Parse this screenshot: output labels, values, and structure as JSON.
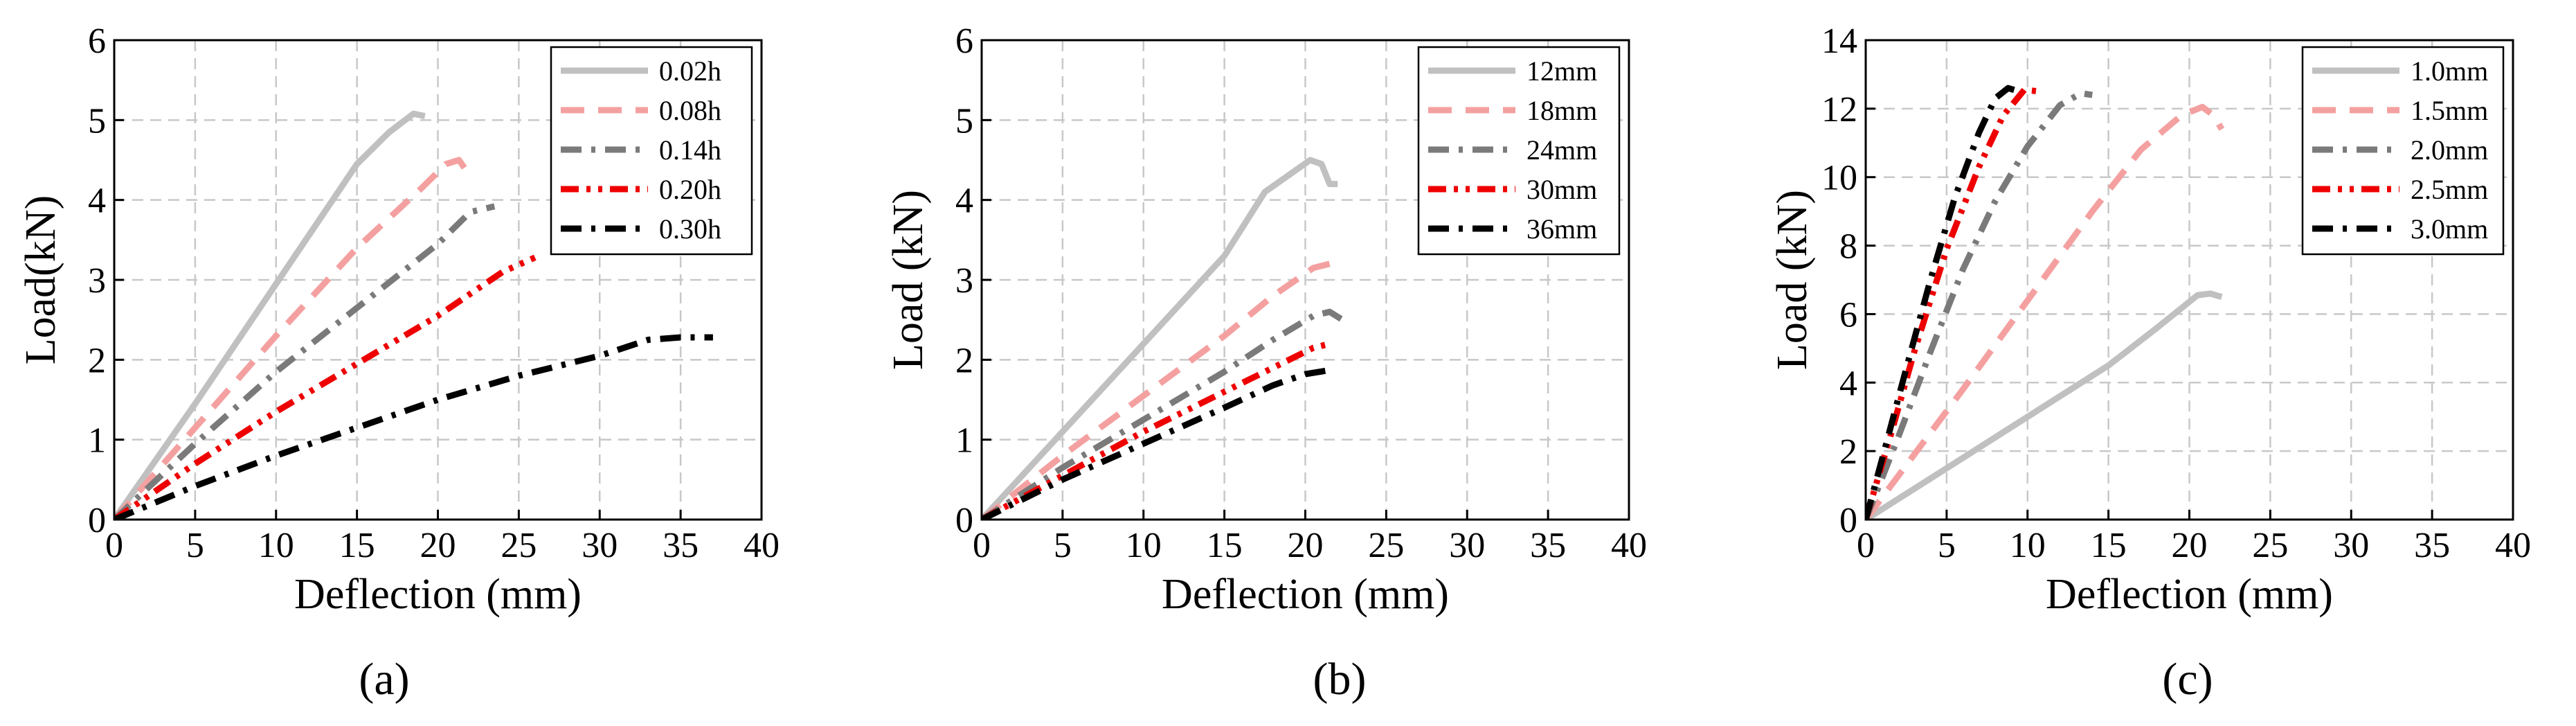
{
  "chart_data": [
    {
      "type": "line",
      "panel_label": "(a)",
      "xlabel": "Deflection (mm)",
      "ylabel": "Load(kN)",
      "xlim": [
        0,
        40
      ],
      "ylim": [
        0,
        6
      ],
      "xticks": [
        0,
        5,
        10,
        15,
        20,
        25,
        30,
        35,
        40
      ],
      "yticks": [
        0,
        1,
        2,
        3,
        4,
        5,
        6
      ],
      "grid": true,
      "legend_position": "top-right",
      "series": [
        {
          "name": "0.02h",
          "color": "#c0c0c0",
          "dash": "solid",
          "points": [
            [
              0,
              0
            ],
            [
              5,
              1.45
            ],
            [
              10,
              2.95
            ],
            [
              15,
              4.45
            ],
            [
              17,
              4.85
            ],
            [
              18.5,
              5.08
            ],
            [
              19.2,
              5.05
            ]
          ]
        },
        {
          "name": "0.08h",
          "color": "#f4a0a0",
          "dash": "dash",
          "points": [
            [
              0,
              0
            ],
            [
              5,
              1.15
            ],
            [
              10,
              2.3
            ],
            [
              15,
              3.4
            ],
            [
              19,
              4.15
            ],
            [
              20.5,
              4.45
            ],
            [
              21.3,
              4.5
            ],
            [
              22,
              4.3
            ]
          ]
        },
        {
          "name": "0.14h",
          "color": "#7a7a7a",
          "dash": "dashdot",
          "points": [
            [
              0,
              0
            ],
            [
              5,
              0.95
            ],
            [
              10,
              1.85
            ],
            [
              15,
              2.65
            ],
            [
              20,
              3.45
            ],
            [
              22,
              3.85
            ],
            [
              23.5,
              3.92
            ]
          ]
        },
        {
          "name": "0.20h",
          "color": "#ee0000",
          "dash": "dashdotdot",
          "points": [
            [
              0,
              0
            ],
            [
              5,
              0.7
            ],
            [
              10,
              1.35
            ],
            [
              15,
              1.95
            ],
            [
              20,
              2.55
            ],
            [
              24,
              3.1
            ],
            [
              26,
              3.28
            ]
          ]
        },
        {
          "name": "0.30h",
          "color": "#000000",
          "dash": "dashdot",
          "points": [
            [
              0,
              0
            ],
            [
              5,
              0.42
            ],
            [
              10,
              0.8
            ],
            [
              15,
              1.15
            ],
            [
              20,
              1.5
            ],
            [
              25,
              1.8
            ],
            [
              30,
              2.05
            ],
            [
              33,
              2.25
            ],
            [
              35,
              2.28
            ],
            [
              37,
              2.28
            ]
          ]
        }
      ]
    },
    {
      "type": "line",
      "panel_label": "(b)",
      "xlabel": "Deflection (mm)",
      "ylabel": "Load (kN)",
      "xlim": [
        0,
        40
      ],
      "ylim": [
        0,
        6
      ],
      "xticks": [
        0,
        5,
        10,
        15,
        20,
        25,
        30,
        35,
        40
      ],
      "yticks": [
        0,
        1,
        2,
        3,
        4,
        5,
        6
      ],
      "grid": true,
      "legend_position": "top-right",
      "series": [
        {
          "name": "12mm",
          "color": "#c0c0c0",
          "dash": "solid",
          "points": [
            [
              0,
              0
            ],
            [
              5,
              1.1
            ],
            [
              10,
              2.2
            ],
            [
              15,
              3.3
            ],
            [
              17.5,
              4.1
            ],
            [
              20.3,
              4.5
            ],
            [
              21,
              4.45
            ],
            [
              21.5,
              4.2
            ],
            [
              22,
              4.2
            ]
          ]
        },
        {
          "name": "18mm",
          "color": "#f4a0a0",
          "dash": "dash",
          "points": [
            [
              0,
              0
            ],
            [
              5,
              0.8
            ],
            [
              10,
              1.55
            ],
            [
              15,
              2.3
            ],
            [
              18,
              2.8
            ],
            [
              20.5,
              3.15
            ],
            [
              21.5,
              3.2
            ]
          ]
        },
        {
          "name": "24mm",
          "color": "#7a7a7a",
          "dash": "dashdot",
          "points": [
            [
              0,
              0
            ],
            [
              5,
              0.65
            ],
            [
              10,
              1.25
            ],
            [
              15,
              1.85
            ],
            [
              18,
              2.25
            ],
            [
              20.5,
              2.55
            ],
            [
              21.5,
              2.6
            ],
            [
              22.3,
              2.5
            ]
          ]
        },
        {
          "name": "30mm",
          "color": "#ee0000",
          "dash": "dashdotdot",
          "points": [
            [
              0,
              0
            ],
            [
              5,
              0.55
            ],
            [
              10,
              1.1
            ],
            [
              15,
              1.6
            ],
            [
              18,
              1.9
            ],
            [
              20.5,
              2.15
            ],
            [
              21.5,
              2.2
            ]
          ]
        },
        {
          "name": "36mm",
          "color": "#000000",
          "dash": "dashdot",
          "points": [
            [
              0,
              0
            ],
            [
              5,
              0.5
            ],
            [
              10,
              0.95
            ],
            [
              15,
              1.4
            ],
            [
              18,
              1.68
            ],
            [
              20,
              1.82
            ],
            [
              21.5,
              1.87
            ]
          ]
        }
      ]
    },
    {
      "type": "line",
      "panel_label": "(c)",
      "xlabel": "Deflection (mm)",
      "ylabel": "Load (kN)",
      "xlim": [
        0,
        40
      ],
      "ylim": [
        0,
        14
      ],
      "xticks": [
        0,
        5,
        10,
        15,
        20,
        25,
        30,
        35,
        40
      ],
      "yticks": [
        0,
        2,
        4,
        6,
        8,
        10,
        12,
        14
      ],
      "grid": true,
      "legend_position": "top-right",
      "series": [
        {
          "name": "1.0mm",
          "color": "#c0c0c0",
          "dash": "solid",
          "points": [
            [
              0,
              0
            ],
            [
              5,
              1.5
            ],
            [
              10,
              3.0
            ],
            [
              15,
              4.5
            ],
            [
              18,
              5.6
            ],
            [
              20.5,
              6.55
            ],
            [
              21.3,
              6.6
            ],
            [
              22,
              6.5
            ]
          ]
        },
        {
          "name": "1.5mm",
          "color": "#f4a0a0",
          "dash": "dash",
          "points": [
            [
              0,
              0
            ],
            [
              3,
              1.9
            ],
            [
              6,
              3.8
            ],
            [
              10,
              6.4
            ],
            [
              14,
              9.0
            ],
            [
              17,
              10.8
            ],
            [
              19.5,
              11.8
            ],
            [
              20.8,
              12.05
            ],
            [
              21.5,
              11.8
            ],
            [
              22,
              11.4
            ]
          ]
        },
        {
          "name": "2.0mm",
          "color": "#7a7a7a",
          "dash": "dashdot",
          "points": [
            [
              0,
              0
            ],
            [
              2,
              2.4
            ],
            [
              4,
              4.9
            ],
            [
              6,
              7.3
            ],
            [
              8,
              9.3
            ],
            [
              10,
              10.9
            ],
            [
              12,
              12.1
            ],
            [
              13.3,
              12.45
            ],
            [
              14,
              12.4
            ]
          ]
        },
        {
          "name": "2.5mm",
          "color": "#ee0000",
          "dash": "dashdotdot",
          "points": [
            [
              0,
              0
            ],
            [
              1.5,
              2.4
            ],
            [
              3,
              4.9
            ],
            [
              5,
              7.9
            ],
            [
              7,
              10.3
            ],
            [
              8.5,
              11.8
            ],
            [
              9.8,
              12.55
            ],
            [
              10.8,
              12.5
            ]
          ]
        },
        {
          "name": "3.0mm",
          "color": "#000000",
          "dash": "dashdot",
          "points": [
            [
              0,
              0
            ],
            [
              1.2,
              2.1
            ],
            [
              2.5,
              4.4
            ],
            [
              4,
              7.0
            ],
            [
              5.5,
              9.4
            ],
            [
              7,
              11.3
            ],
            [
              8,
              12.3
            ],
            [
              8.8,
              12.6
            ],
            [
              9.5,
              12.5
            ]
          ]
        }
      ]
    }
  ]
}
